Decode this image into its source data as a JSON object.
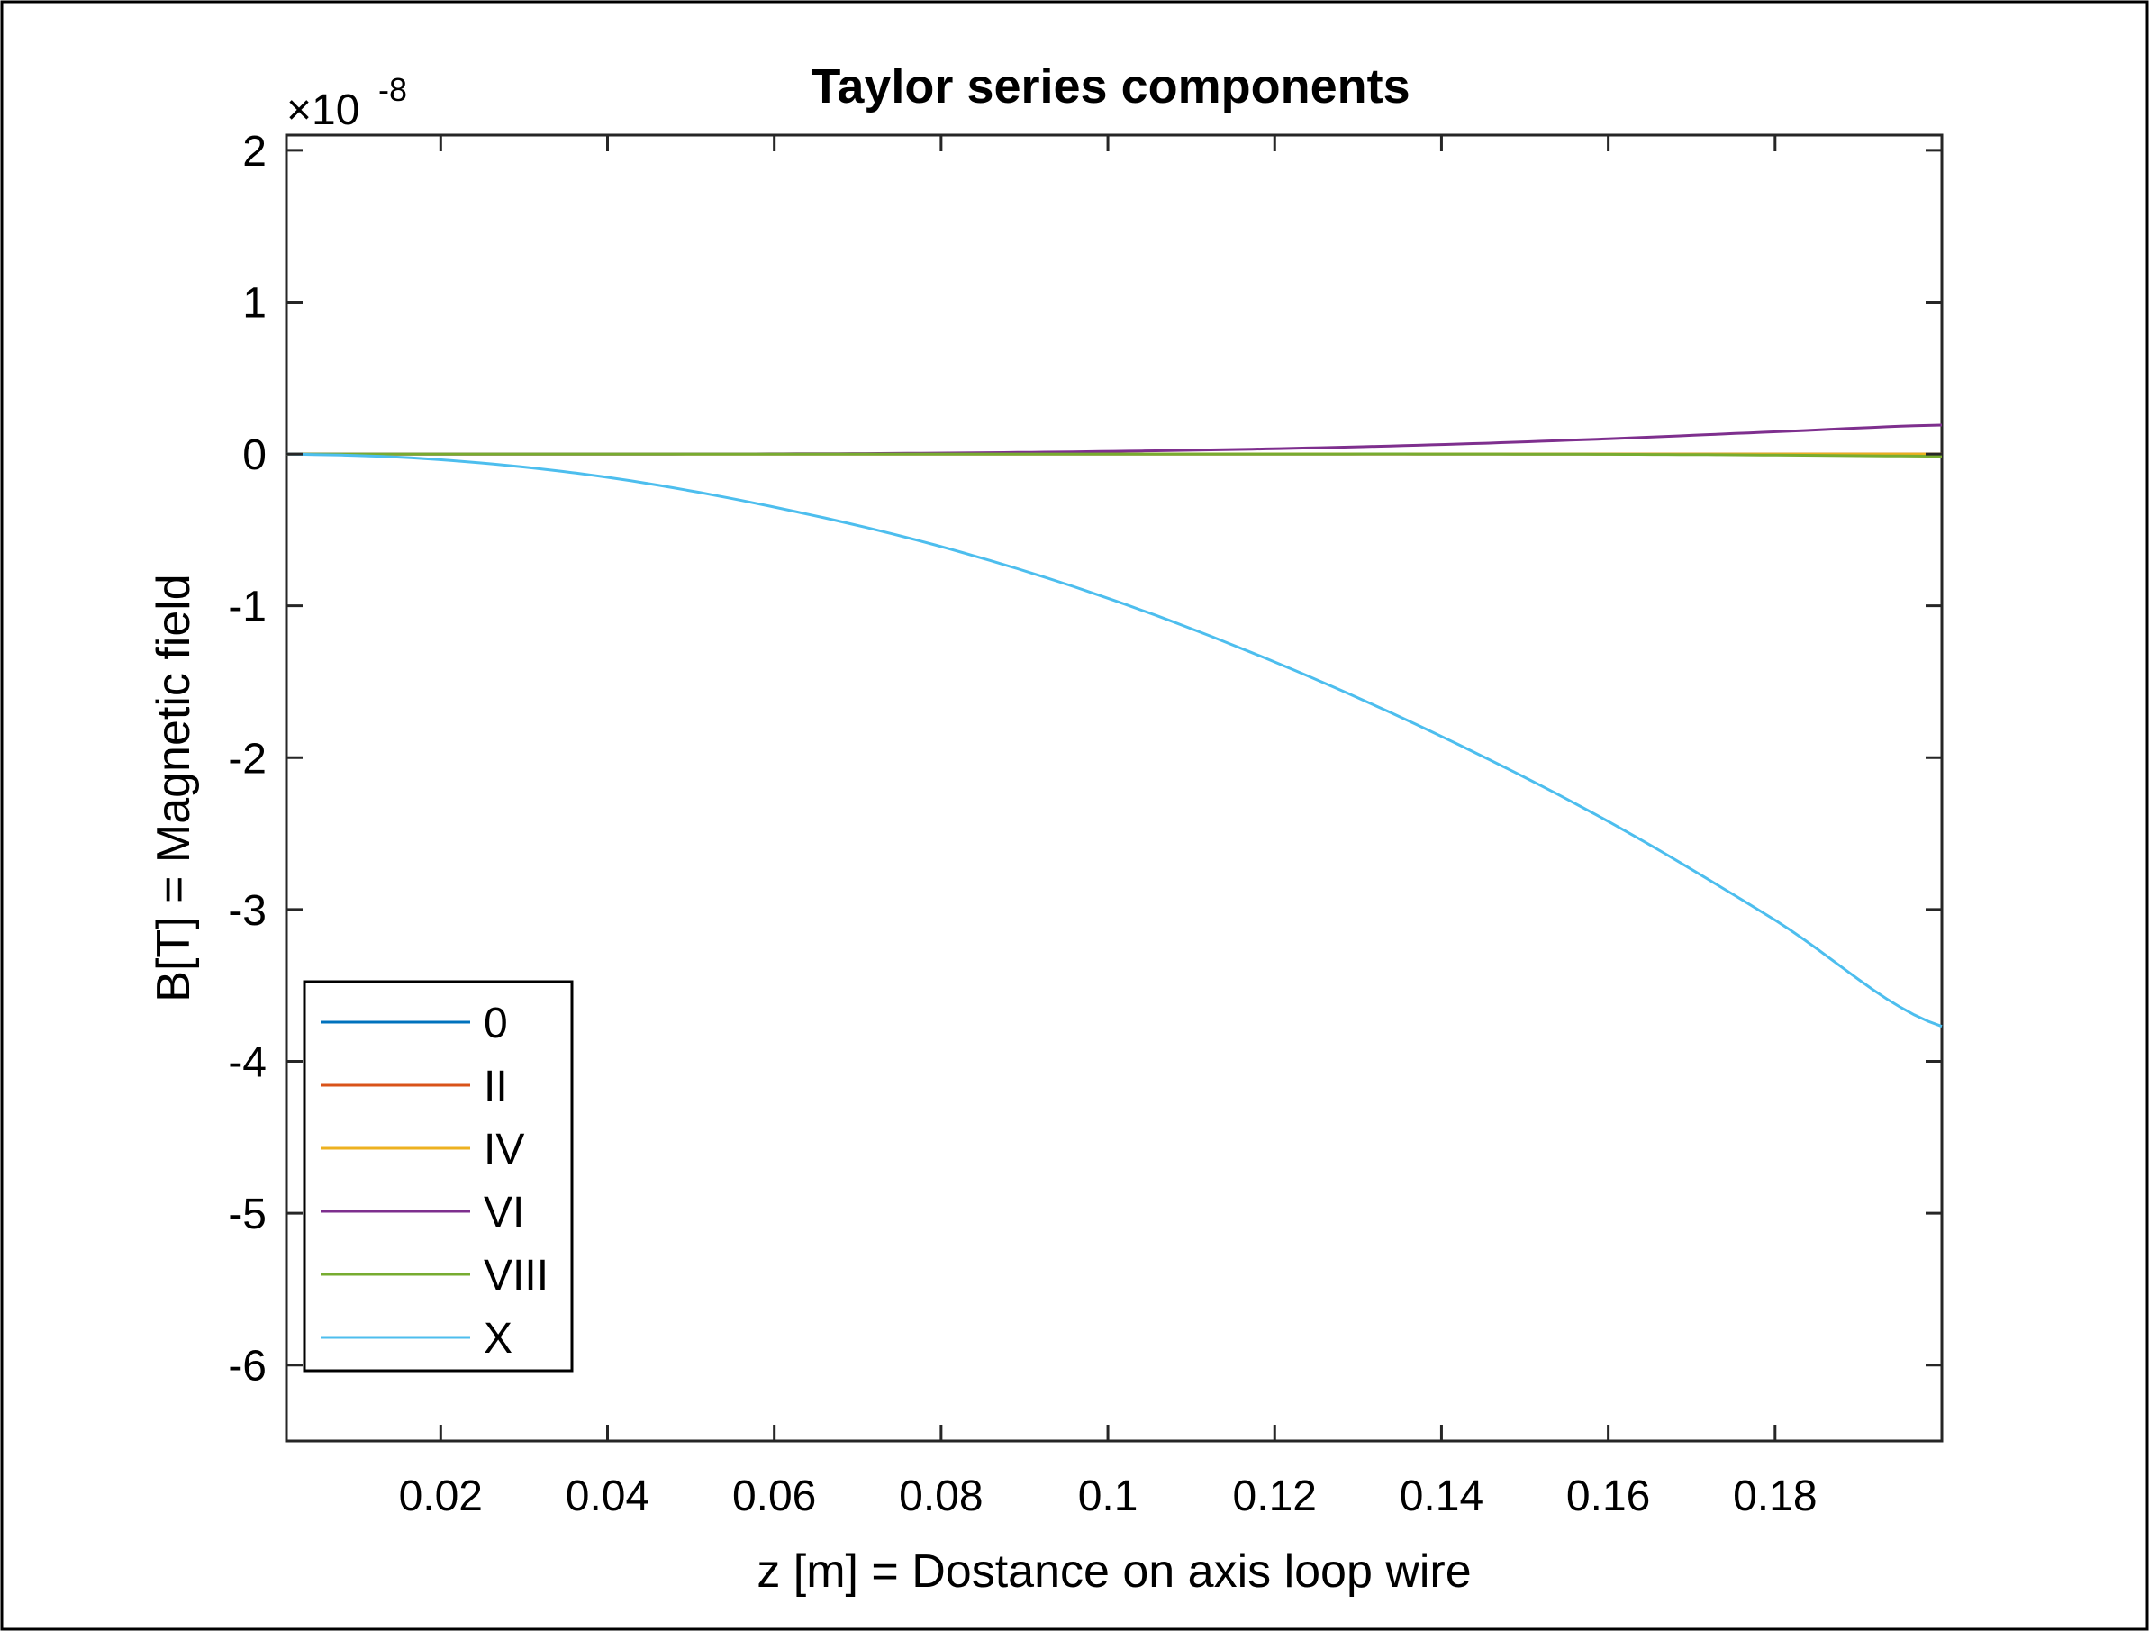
{
  "chart_data": {
    "type": "line",
    "title": "Taylor series components",
    "xlabel": "z [m] = Dostance on axis loop wire",
    "ylabel": "B[T] = Magnetic field",
    "y_exponent_base": "×10",
    "y_exponent_power": "-8",
    "xlim": [
      0.0015,
      0.2
    ],
    "ylim": [
      -6.5,
      2.1
    ],
    "xticks": [
      0.02,
      0.04,
      0.06,
      0.08,
      0.1,
      0.12,
      0.14,
      0.16,
      0.18
    ],
    "xtick_labels": [
      "0.02",
      "0.04",
      "0.06",
      "0.08",
      "0.1",
      "0.12",
      "0.14",
      "0.16",
      "0.18"
    ],
    "yticks": [
      2,
      1,
      0,
      -1,
      -2,
      -3,
      -4,
      -5,
      -6
    ],
    "ytick_labels": [
      "2",
      "1",
      "0",
      "-1",
      "-2",
      "-3",
      "-4",
      "-5",
      "-6"
    ],
    "grid": false,
    "legend_position": "bottom-left",
    "x": [
      0.0015,
      0.02,
      0.04,
      0.06,
      0.08,
      0.1,
      0.12,
      0.14,
      0.16,
      0.18,
      0.2
    ],
    "series": [
      {
        "name": "0",
        "color": "#0072BD",
        "values": [
          0,
          0,
          0,
          0,
          0,
          0,
          0,
          0,
          0,
          0,
          0
        ]
      },
      {
        "name": "II",
        "color": "#D95319",
        "values": [
          0,
          0,
          0,
          0,
          0,
          0,
          0,
          0,
          0,
          0,
          0
        ]
      },
      {
        "name": "IV",
        "color": "#EDB120",
        "values": [
          0,
          0,
          0,
          0,
          0,
          0,
          0,
          0,
          0,
          0,
          0
        ]
      },
      {
        "name": "VI",
        "color": "#7E2F8E",
        "values": [
          0,
          0,
          0,
          0.0009,
          0.006,
          0.017,
          0.035,
          0.062,
          0.1,
          0.146,
          0.19
        ]
      },
      {
        "name": "VIII",
        "color": "#77AC30",
        "values": [
          0,
          0,
          0,
          0,
          0,
          0,
          0,
          0,
          -0.002,
          -0.007,
          -0.015
        ]
      },
      {
        "name": "X",
        "color": "#4DBEEE",
        "values": [
          0,
          -0.038,
          -0.154,
          -0.35,
          -0.61,
          -0.95,
          -1.37,
          -1.86,
          -2.42,
          -3.07,
          -3.77
        ]
      }
    ]
  }
}
